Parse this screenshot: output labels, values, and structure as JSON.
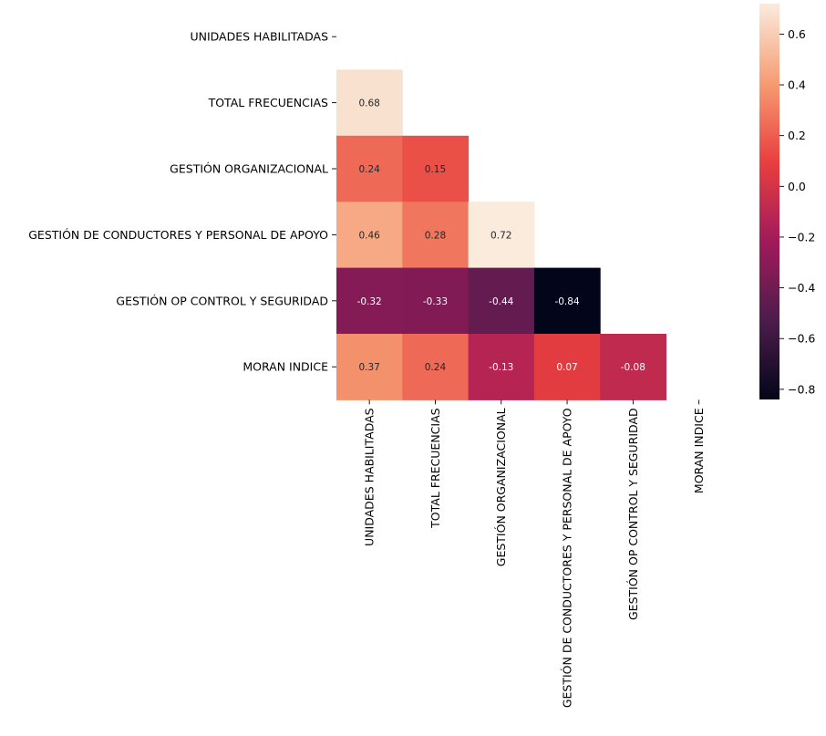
{
  "chart_data": {
    "type": "heatmap",
    "title": "",
    "xlabel": "",
    "ylabel": "",
    "labels": [
      "UNIDADES HABILITADAS",
      "TOTAL FRECUENCIAS",
      "GESTIÓN ORGANIZACIONAL",
      "GESTIÓN DE CONDUCTORES Y PERSONAL DE APOYO",
      "GESTIÓN OP CONTROL Y SEGURIDAD",
      "MORAN INDICE"
    ],
    "mask": "upper-triangle-and-diagonal",
    "cells": [
      {
        "row": 1,
        "col": 0,
        "value": 0.68,
        "label": "0.68"
      },
      {
        "row": 2,
        "col": 0,
        "value": 0.24,
        "label": "0.24"
      },
      {
        "row": 2,
        "col": 1,
        "value": 0.15,
        "label": "0.15"
      },
      {
        "row": 3,
        "col": 0,
        "value": 0.46,
        "label": "0.46"
      },
      {
        "row": 3,
        "col": 1,
        "value": 0.28,
        "label": "0.28"
      },
      {
        "row": 3,
        "col": 2,
        "value": 0.72,
        "label": "0.72"
      },
      {
        "row": 4,
        "col": 0,
        "value": -0.32,
        "label": "-0.32"
      },
      {
        "row": 4,
        "col": 1,
        "value": -0.33,
        "label": "-0.33"
      },
      {
        "row": 4,
        "col": 2,
        "value": -0.44,
        "label": "-0.44"
      },
      {
        "row": 4,
        "col": 3,
        "value": -0.84,
        "label": "-0.84"
      },
      {
        "row": 5,
        "col": 0,
        "value": 0.37,
        "label": "0.37"
      },
      {
        "row": 5,
        "col": 1,
        "value": 0.24,
        "label": "0.24"
      },
      {
        "row": 5,
        "col": 2,
        "value": -0.13,
        "label": "-0.13"
      },
      {
        "row": 5,
        "col": 3,
        "value": 0.07,
        "label": "0.07"
      },
      {
        "row": 5,
        "col": 4,
        "value": -0.08,
        "label": "-0.08"
      }
    ],
    "colorbar": {
      "vmin": -0.84,
      "vmax": 0.72,
      "ticks": [
        0.6,
        0.4,
        0.2,
        0.0,
        -0.2,
        -0.4,
        -0.6,
        -0.8
      ],
      "tick_labels": [
        "0.6",
        "0.4",
        "0.2",
        "0.0",
        "−0.2",
        "−0.4",
        "−0.6",
        "−0.8"
      ],
      "colormap": "rocket",
      "colormap_stops": [
        "#03051a",
        "#4c1d4b",
        "#a11a5b",
        "#e83f3f",
        "#f69c73",
        "#faebdd"
      ]
    },
    "annotation_colors": {
      "dark": "#262626",
      "light": "#ffffff"
    }
  }
}
